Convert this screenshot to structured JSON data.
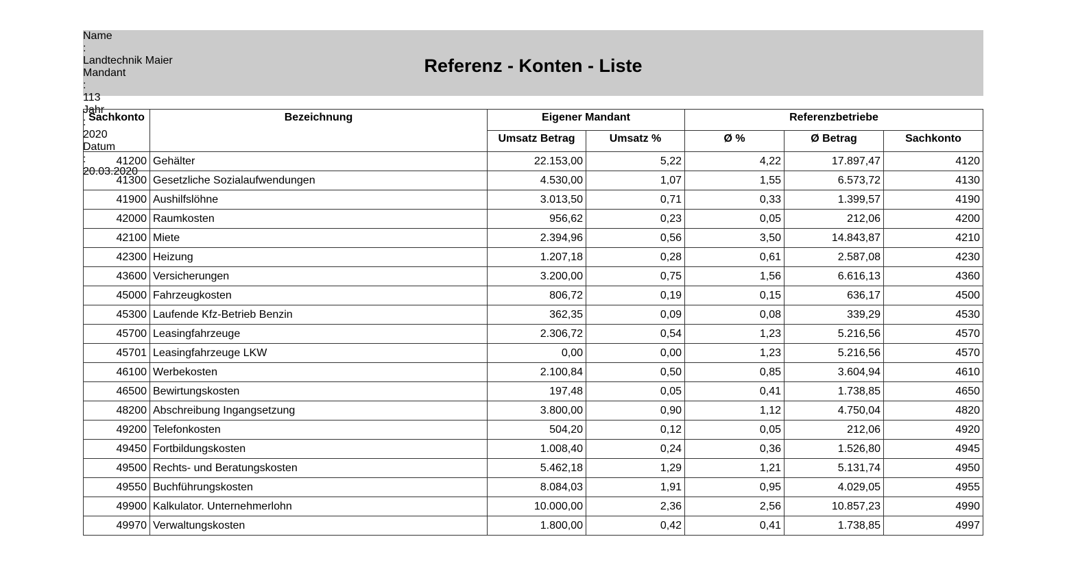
{
  "header": {
    "separator": ":",
    "fields": [
      {
        "label": "Name",
        "value": "Landtechnik Maier"
      },
      {
        "label": "Mandant",
        "value": "113"
      },
      {
        "label": "Jahr",
        "value": "2020"
      }
    ],
    "title": "Referenz - Konten - Liste",
    "date": {
      "label": "Datum",
      "value": "20.03.2020"
    }
  },
  "table": {
    "columns": [
      "Sachkonto",
      "Bezeichnung"
    ],
    "groups": [
      "Eigener  Mandant",
      "Referenzbetriebe"
    ],
    "subcolumns": [
      "Umsatz Betrag",
      "Umsatz %",
      "Ø %",
      "Ø Betrag",
      "Sachkonto"
    ],
    "rows": [
      [
        "41200",
        "Gehälter",
        "22.153,00",
        "5,22",
        "4,22",
        "17.897,47",
        "4120"
      ],
      [
        "41300",
        "Gesetzliche Sozialaufwendungen",
        "4.530,00",
        "1,07",
        "1,55",
        "6.573,72",
        "4130"
      ],
      [
        "41900",
        "Aushilfslöhne",
        "3.013,50",
        "0,71",
        "0,33",
        "1.399,57",
        "4190"
      ],
      [
        "42000",
        "Raumkosten",
        "956,62",
        "0,23",
        "0,05",
        "212,06",
        "4200"
      ],
      [
        "42100",
        "Miete",
        "2.394,96",
        "0,56",
        "3,50",
        "14.843,87",
        "4210"
      ],
      [
        "42300",
        "Heizung",
        "1.207,18",
        "0,28",
        "0,61",
        "2.587,08",
        "4230"
      ],
      [
        "43600",
        "Versicherungen",
        "3.200,00",
        "0,75",
        "1,56",
        "6.616,13",
        "4360"
      ],
      [
        "45000",
        "Fahrzeugkosten",
        "806,72",
        "0,19",
        "0,15",
        "636,17",
        "4500"
      ],
      [
        "45300",
        "Laufende Kfz-Betrieb Benzin",
        "362,35",
        "0,09",
        "0,08",
        "339,29",
        "4530"
      ],
      [
        "45700",
        "Leasingfahrzeuge",
        "2.306,72",
        "0,54",
        "1,23",
        "5.216,56",
        "4570"
      ],
      [
        "45701",
        "Leasingfahrzeuge LKW",
        "0,00",
        "0,00",
        "1,23",
        "5.216,56",
        "4570"
      ],
      [
        "46100",
        "Werbekosten",
        "2.100,84",
        "0,50",
        "0,85",
        "3.604,94",
        "4610"
      ],
      [
        "46500",
        "Bewirtungskosten",
        "197,48",
        "0,05",
        "0,41",
        "1.738,85",
        "4650"
      ],
      [
        "48200",
        "Abschreibung Ingangsetzung",
        "3.800,00",
        "0,90",
        "1,12",
        "4.750,04",
        "4820"
      ],
      [
        "49200",
        "Telefonkosten",
        "504,20",
        "0,12",
        "0,05",
        "212,06",
        "4920"
      ],
      [
        "49450",
        "Fortbildungskosten",
        "1.008,40",
        "0,24",
        "0,36",
        "1.526,80",
        "4945"
      ],
      [
        "49500",
        "Rechts- und Beratungskosten",
        "5.462,18",
        "1,29",
        "1,21",
        "5.131,74",
        "4950"
      ],
      [
        "49550",
        "Buchführungskosten",
        "8.084,03",
        "1,91",
        "0,95",
        "4.029,05",
        "4955"
      ],
      [
        "49900",
        "Kalkulator. Unternehmerlohn",
        "10.000,00",
        "2,36",
        "2,56",
        "10.857,23",
        "4990"
      ],
      [
        "49970",
        "Verwaltungskosten",
        "1.800,00",
        "0,42",
        "0,41",
        "1.738,85",
        "4997"
      ]
    ]
  }
}
